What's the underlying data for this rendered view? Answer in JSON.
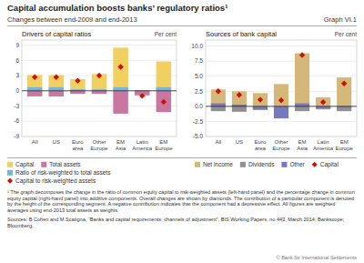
{
  "title": "Capital accumulation boosts banks’ regulatory ratios¹",
  "subtitle": "Changes between end-2009 and end-2013",
  "annotations": [
    "Graph VI.1",
    "¹ The graph decomposes the change in the ratio of common equity capital to risk-weighted assets (left-hand panel) and the percentage change in common equity capital (right-hand panel) into additive components. Overall changes are shown by diamonds. The contribution of a particular component is denoted by the height of the corresponding segment. A negative contribution indicates that the component had a depressive effect. All figures are weighted averages using end-2013 total assets as weights.",
    "Sources: B Cohen and M Scatigna, “Banks and capital requirements: channels of adjustment”, BIS Working Papers, no 443, March 2014; Bankscope; Bloomberg.",
    "© Bank for International Settlements"
  ],
  "chart_data": [
    {
      "type": "bar",
      "title": "Drivers of capital ratios",
      "ylabel": "Per cent",
      "categories": [
        "All",
        "US",
        "Euro\narea",
        "Other\nEurope",
        "EM\nAsia",
        "Latin\nAmerica",
        "EM\nEurope"
      ],
      "ylim": [
        -9,
        10
      ],
      "yticks": [
        -9,
        -6,
        -3,
        0,
        3,
        6,
        9
      ],
      "grid": true,
      "stacked": false,
      "legend": "bottom",
      "series": [
        {
          "name": "Capital",
          "color": "#f0d060",
          "values": [
            3.1,
            3.1,
            2.3,
            3.3,
            8.5,
            -0.2,
            5.8
          ]
        },
        {
          "name": "Total assets",
          "color": "#c878a0",
          "values": [
            -1.1,
            -1.1,
            -0.6,
            -0.6,
            -4.5,
            -0.9,
            -4.2
          ]
        },
        {
          "name": "Ratio of risk-weighted to total assets",
          "color": "#78b4d8",
          "values": [
            0.7,
            0.7,
            0.3,
            0.3,
            0.7,
            0.15,
            0.7
          ]
        },
        {
          "name": "Capital to risk-weighted assets",
          "type": "scatter",
          "marker": "diamond",
          "color": "#cc1100",
          "values": [
            2.7,
            2.7,
            2.0,
            3.0,
            4.7,
            -1.0,
            -2.2
          ]
        }
      ]
    },
    {
      "type": "bar",
      "title": "Sources of bank capital",
      "ylabel": "Per cent",
      "categories": [
        "All",
        "US",
        "Euro\narea",
        "Other\nEurope",
        "EM\nAsia",
        "Latin\nAmerica",
        "EM\nEurope"
      ],
      "ylim": [
        -5,
        11
      ],
      "yticks": [
        {
          "value": -5,
          "label": "-5.0"
        },
        -2.5,
        {
          "value": 0,
          "label": "0.0"
        },
        2.5,
        {
          "value": 5,
          "label": "5.0"
        },
        7.5,
        {
          "value": 10,
          "label": "10.0"
        }
      ],
      "grid": true,
      "stacked": false,
      "legend": "bottom",
      "series": [
        {
          "name": "Net income",
          "color": "#d4b87a",
          "values": [
            2.8,
            2.5,
            2.2,
            3.7,
            8.8,
            1.5,
            4.8
          ]
        },
        {
          "name": "Dividends",
          "color": "#909090",
          "values": [
            -0.8,
            -0.9,
            -0.6,
            -0.7,
            -0.8,
            -0.5,
            -0.8
          ]
        },
        {
          "name": "Other",
          "color": "#7878c0",
          "values": [
            0.5,
            0.3,
            -0.5,
            -2.0,
            0.5,
            -0.3,
            -0.2
          ]
        },
        {
          "name": "Capital",
          "type": "scatter",
          "marker": "diamond",
          "color": "#cc1100",
          "values": [
            2.5,
            1.9,
            1.1,
            1.0,
            8.5,
            0.7,
            3.8
          ]
        }
      ]
    }
  ]
}
